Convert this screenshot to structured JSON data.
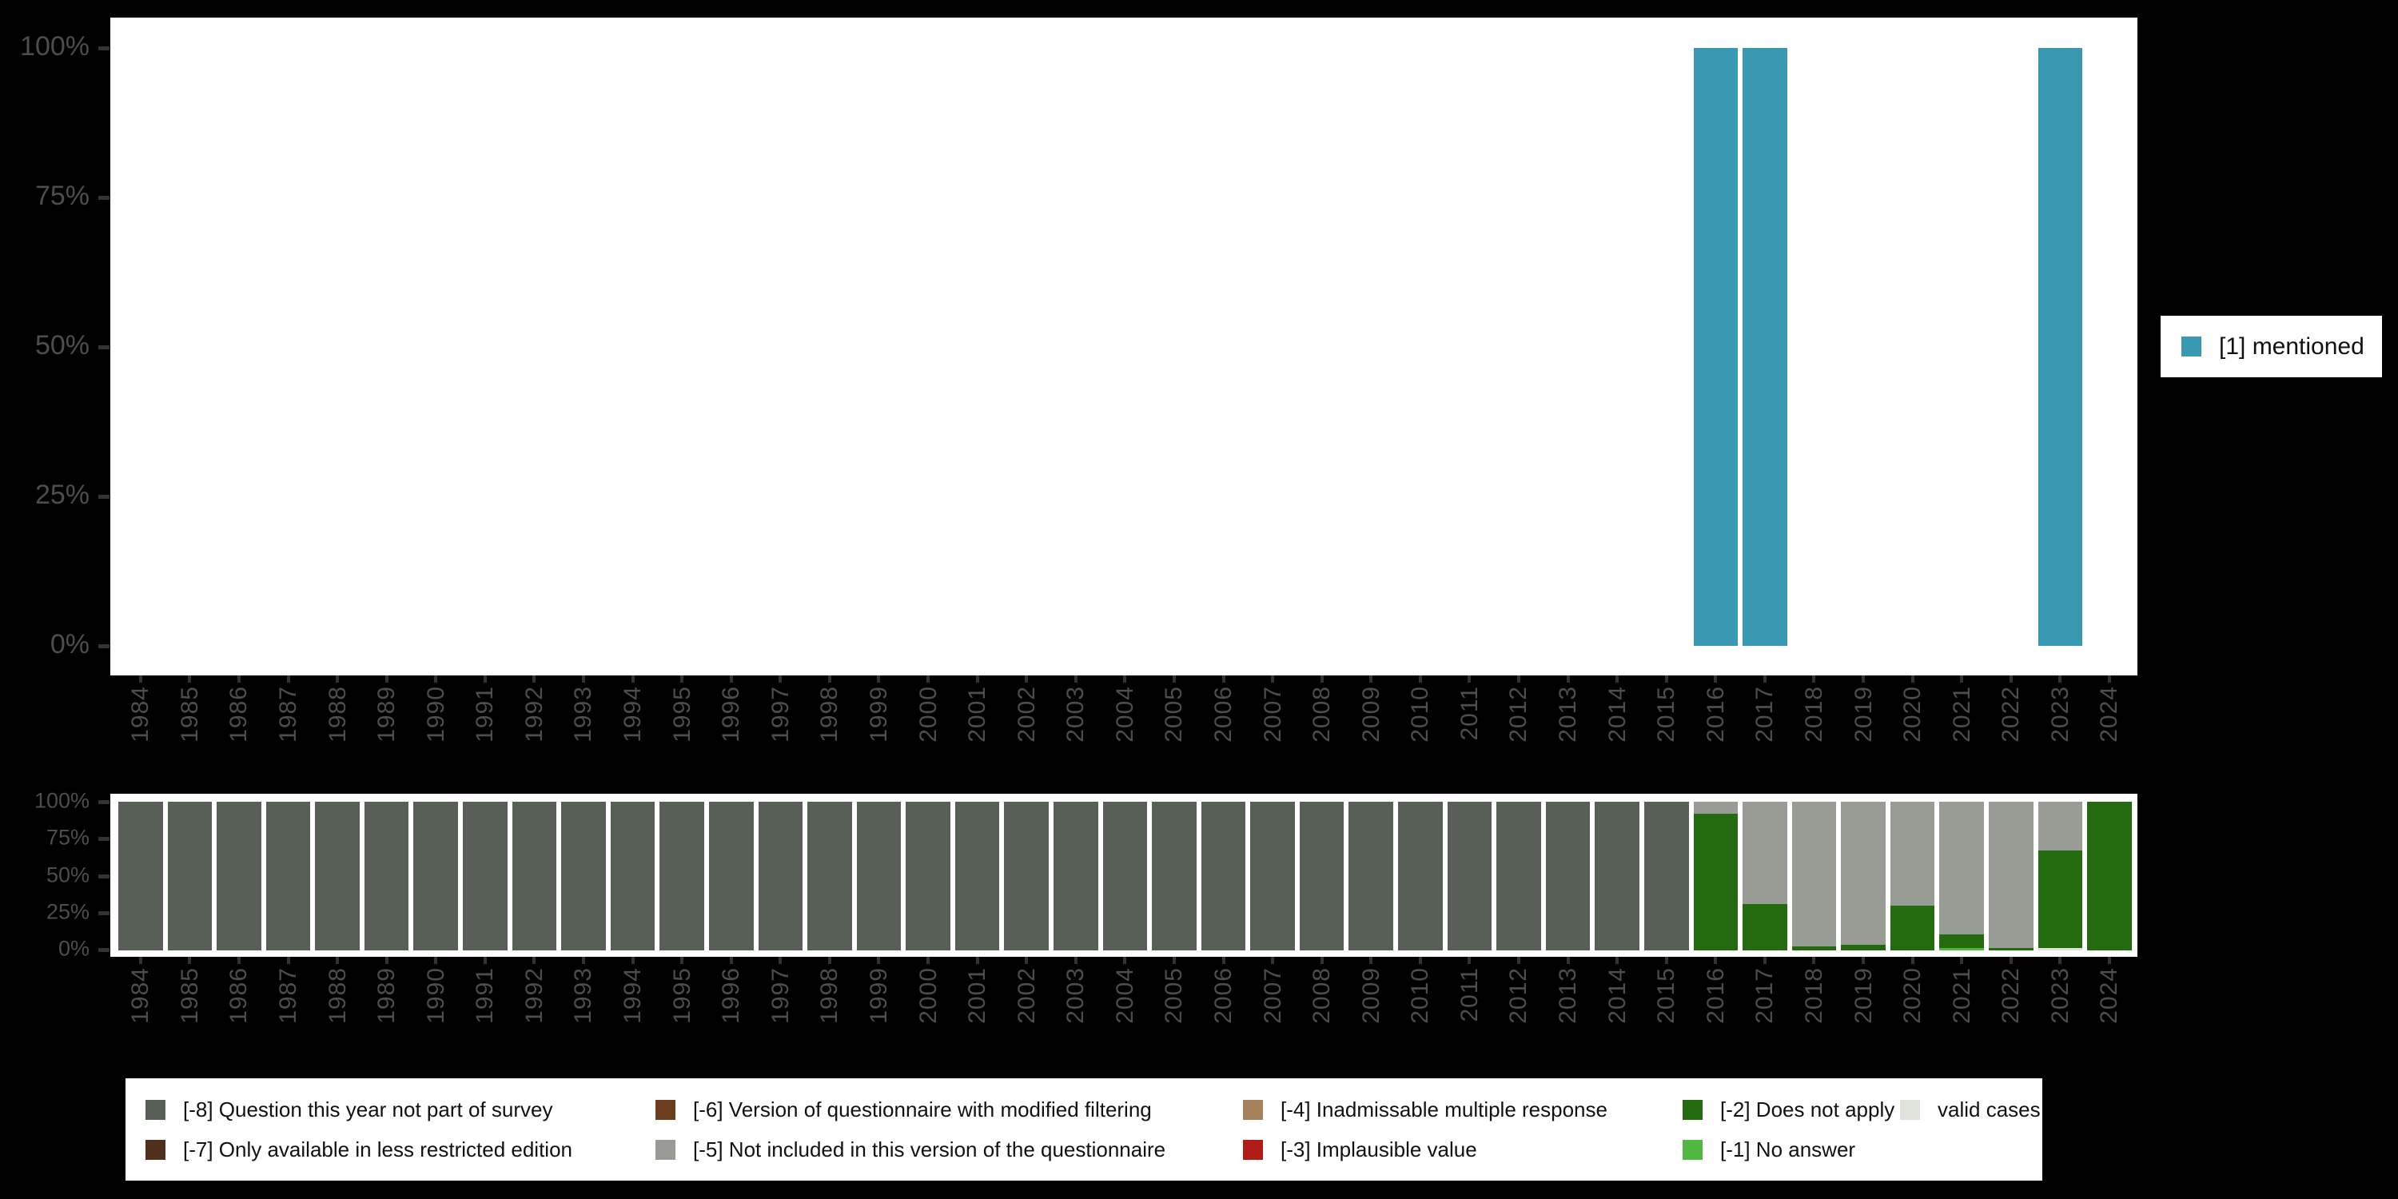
{
  "colors": {
    "background": "#000000",
    "panel": "#FFFFFF",
    "axis_text": "#4D4D4D",
    "tick": "#333333",
    "legend_text": "#111111",
    "mentioned": "#3A99B2",
    "codes": {
      "-8": "#575F56",
      "-7": "#4F311B",
      "-6": "#6B3E1E",
      "-5": "#999C94",
      "-4": "#A6825C",
      "-3": "#B01B16",
      "-2": "#246B10",
      "-1": "#4FB83E",
      "valid": "#DFE3DB"
    }
  },
  "years": [
    1984,
    1985,
    1986,
    1987,
    1988,
    1989,
    1990,
    1991,
    1992,
    1993,
    1994,
    1995,
    1996,
    1997,
    1998,
    1999,
    2000,
    2001,
    2002,
    2003,
    2004,
    2005,
    2006,
    2007,
    2008,
    2009,
    2010,
    2011,
    2012,
    2013,
    2014,
    2015,
    2016,
    2017,
    2018,
    2019,
    2020,
    2021,
    2022,
    2023,
    2024
  ],
  "y_tick_labels": [
    "100%",
    "75%",
    "50%",
    "25%",
    "0%"
  ],
  "top_axis_tick_y": [
    60,
    247,
    434,
    621,
    808
  ],
  "bottom_axis_tick_y": [
    1003,
    1049,
    1096,
    1142,
    1188
  ],
  "legend_right": {
    "label": "[1] mentioned"
  },
  "legend_bottom": {
    "items": [
      {
        "code": "-8",
        "label": "[-8] Question this year not part of survey"
      },
      {
        "code": "-7",
        "label": "[-7] Only available in less restricted edition"
      },
      {
        "code": "-6",
        "label": "[-6] Version of questionnaire with modified filtering"
      },
      {
        "code": "-5",
        "label": "[-5] Not included in this version of the questionnaire"
      },
      {
        "code": "-4",
        "label": "[-4] Inadmissable multiple response"
      },
      {
        "code": "-3",
        "label": "[-3] Implausible value"
      },
      {
        "code": "-2",
        "label": "[-2] Does not apply"
      },
      {
        "code": "-1",
        "label": "[-1] No answer"
      },
      {
        "code": "valid",
        "label": "valid cases"
      }
    ]
  },
  "chart_data": [
    {
      "type": "bar",
      "title": "",
      "xlabel": "",
      "ylabel": "",
      "x": [
        1984,
        1985,
        1986,
        1987,
        1988,
        1989,
        1990,
        1991,
        1992,
        1993,
        1994,
        1995,
        1996,
        1997,
        1998,
        1999,
        2000,
        2001,
        2002,
        2003,
        2004,
        2005,
        2006,
        2007,
        2008,
        2009,
        2010,
        2011,
        2012,
        2013,
        2014,
        2015,
        2016,
        2017,
        2018,
        2019,
        2020,
        2021,
        2022,
        2023,
        2024
      ],
      "ylim": [
        0,
        100
      ],
      "yticks": [
        "0%",
        "25%",
        "50%",
        "75%",
        "100%"
      ],
      "grid": false,
      "legend_position": "right",
      "series": [
        {
          "name": "[1] mentioned",
          "color": "#3A99B2",
          "values": [
            null,
            null,
            null,
            null,
            null,
            null,
            null,
            null,
            null,
            null,
            null,
            null,
            null,
            null,
            null,
            null,
            null,
            null,
            null,
            null,
            null,
            null,
            null,
            null,
            null,
            null,
            null,
            null,
            null,
            null,
            null,
            null,
            100,
            100,
            null,
            null,
            null,
            null,
            null,
            100,
            null
          ]
        }
      ]
    },
    {
      "type": "bar",
      "subtype": "stacked-percent",
      "title": "",
      "xlabel": "",
      "ylabel": "",
      "x": [
        1984,
        1985,
        1986,
        1987,
        1988,
        1989,
        1990,
        1991,
        1992,
        1993,
        1994,
        1995,
        1996,
        1997,
        1998,
        1999,
        2000,
        2001,
        2002,
        2003,
        2004,
        2005,
        2006,
        2007,
        2008,
        2009,
        2010,
        2011,
        2012,
        2013,
        2014,
        2015,
        2016,
        2017,
        2018,
        2019,
        2020,
        2021,
        2022,
        2023,
        2024
      ],
      "ylim": [
        0,
        100
      ],
      "yticks": [
        "0%",
        "25%",
        "50%",
        "75%",
        "100%"
      ],
      "grid": false,
      "legend_position": "bottom",
      "stack_order_bottom_to_top": [
        "valid",
        "-1",
        "-2",
        "-3",
        "-4",
        "-5",
        "-6",
        "-7",
        "-8"
      ],
      "series": [
        {
          "name": "[-8] Question this year not part of survey",
          "code": "-8",
          "values": [
            100,
            100,
            100,
            100,
            100,
            100,
            100,
            100,
            100,
            100,
            100,
            100,
            100,
            100,
            100,
            100,
            100,
            100,
            100,
            100,
            100,
            100,
            100,
            100,
            100,
            100,
            100,
            100,
            100,
            100,
            100,
            100,
            0,
            0,
            0,
            0,
            0,
            0,
            0,
            0,
            0
          ]
        },
        {
          "name": "[-7] Only available in less restricted edition",
          "code": "-7",
          "values": [
            0,
            0,
            0,
            0,
            0,
            0,
            0,
            0,
            0,
            0,
            0,
            0,
            0,
            0,
            0,
            0,
            0,
            0,
            0,
            0,
            0,
            0,
            0,
            0,
            0,
            0,
            0,
            0,
            0,
            0,
            0,
            0,
            0,
            0,
            0,
            0,
            0,
            0,
            0,
            0,
            0
          ]
        },
        {
          "name": "[-6] Version of questionnaire with modified filtering",
          "code": "-6",
          "values": [
            0,
            0,
            0,
            0,
            0,
            0,
            0,
            0,
            0,
            0,
            0,
            0,
            0,
            0,
            0,
            0,
            0,
            0,
            0,
            0,
            0,
            0,
            0,
            0,
            0,
            0,
            0,
            0,
            0,
            0,
            0,
            0,
            0,
            0,
            0,
            0,
            0,
            0,
            0,
            0,
            0
          ]
        },
        {
          "name": "[-5] Not included in this version of the questionnaire",
          "code": "-5",
          "values": [
            0,
            0,
            0,
            0,
            0,
            0,
            0,
            0,
            0,
            0,
            0,
            0,
            0,
            0,
            0,
            0,
            0,
            0,
            0,
            0,
            0,
            0,
            0,
            0,
            0,
            0,
            0,
            0,
            0,
            0,
            0,
            0,
            8,
            69,
            97.5,
            96,
            70,
            89,
            98.5,
            33,
            0
          ]
        },
        {
          "name": "[-4] Inadmissable multiple response",
          "code": "-4",
          "values": [
            0,
            0,
            0,
            0,
            0,
            0,
            0,
            0,
            0,
            0,
            0,
            0,
            0,
            0,
            0,
            0,
            0,
            0,
            0,
            0,
            0,
            0,
            0,
            0,
            0,
            0,
            0,
            0,
            0,
            0,
            0,
            0,
            0,
            0,
            0,
            0,
            0,
            0,
            0,
            0,
            0
          ]
        },
        {
          "name": "[-3] Implausible value",
          "code": "-3",
          "values": [
            0,
            0,
            0,
            0,
            0,
            0,
            0,
            0,
            0,
            0,
            0,
            0,
            0,
            0,
            0,
            0,
            0,
            0,
            0,
            0,
            0,
            0,
            0,
            0,
            0,
            0,
            0,
            0,
            0,
            0,
            0,
            0,
            0,
            0,
            0,
            0,
            0,
            0,
            0,
            0,
            0
          ]
        },
        {
          "name": "[-2] Does not apply",
          "code": "-2",
          "values": [
            0,
            0,
            0,
            0,
            0,
            0,
            0,
            0,
            0,
            0,
            0,
            0,
            0,
            0,
            0,
            0,
            0,
            0,
            0,
            0,
            0,
            0,
            0,
            0,
            0,
            0,
            0,
            0,
            0,
            0,
            0,
            0,
            92,
            31,
            2.5,
            4,
            30,
            9.5,
            1.5,
            65.5,
            100
          ]
        },
        {
          "name": "[-1] No answer",
          "code": "-1",
          "values": [
            0,
            0,
            0,
            0,
            0,
            0,
            0,
            0,
            0,
            0,
            0,
            0,
            0,
            0,
            0,
            0,
            0,
            0,
            0,
            0,
            0,
            0,
            0,
            0,
            0,
            0,
            0,
            0,
            0,
            0,
            0,
            0,
            0,
            0,
            0,
            0,
            0,
            1.5,
            0,
            0,
            0
          ]
        },
        {
          "name": "valid cases",
          "code": "valid",
          "values": [
            0,
            0,
            0,
            0,
            0,
            0,
            0,
            0,
            0,
            0,
            0,
            0,
            0,
            0,
            0,
            0,
            0,
            0,
            0,
            0,
            0,
            0,
            0,
            0,
            0,
            0,
            0,
            0,
            0,
            0,
            0,
            0,
            0,
            0,
            0,
            0,
            0,
            0,
            0,
            1.5,
            0
          ]
        }
      ]
    }
  ]
}
